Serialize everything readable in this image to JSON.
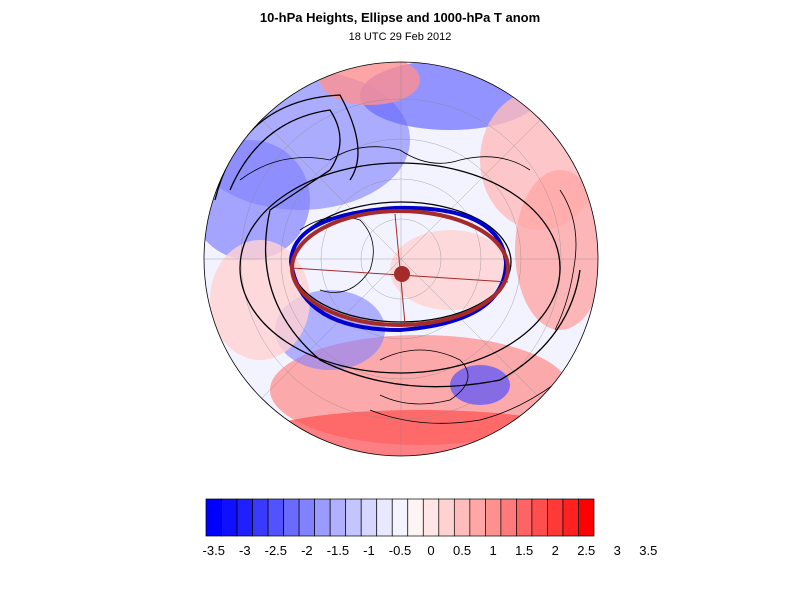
{
  "title": "10-hPa Heights, Ellipse and 1000-hPa T anom",
  "subtitle": "18 UTC 29 Feb 2012",
  "colorbar": {
    "colors": [
      "#0000ff",
      "#1010ff",
      "#2020ff",
      "#3a3aff",
      "#5252ff",
      "#6a6aff",
      "#8282ff",
      "#9a9aff",
      "#b0b0ff",
      "#c4c4ff",
      "#d6d6ff",
      "#e8e8ff",
      "#f4f4ff",
      "#fff4f4",
      "#ffe6e6",
      "#ffd2d2",
      "#ffbcbc",
      "#ffa6a6",
      "#ff9090",
      "#ff7a7a",
      "#ff6464",
      "#ff4e4e",
      "#ff3838",
      "#ff2020",
      "#ff0000"
    ],
    "labels": [
      "-3.5",
      "-3",
      "-2.5",
      "-2",
      "-1.5",
      "-1",
      "-0.5",
      "0",
      "0.5",
      "1",
      "1.5",
      "2",
      "2.5",
      "3",
      "3.5"
    ]
  },
  "ellipse_colors": {
    "observed": "#0000cc",
    "fitted": "#a52a2a"
  }
}
